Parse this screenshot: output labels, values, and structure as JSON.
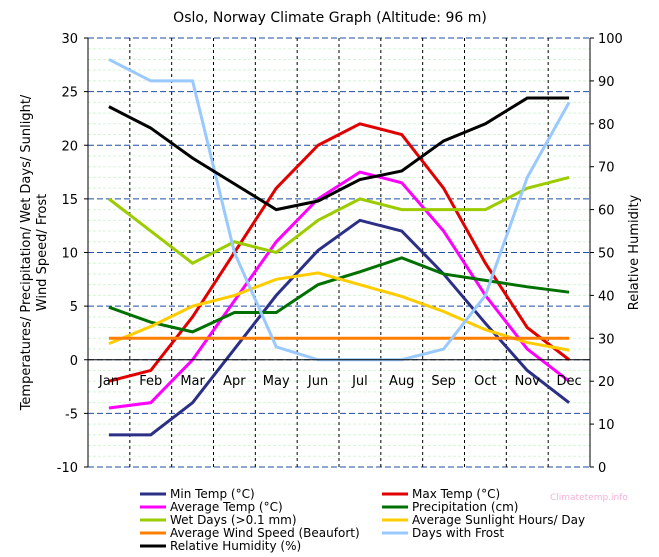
{
  "chart_data": {
    "type": "line",
    "title": "Oslo, Norway Climate Graph (Altitude: 96 m)",
    "categories": [
      "Jan",
      "Feb",
      "Mar",
      "Apr",
      "May",
      "Jun",
      "Jul",
      "Aug",
      "Sep",
      "Oct",
      "Nov",
      "Dec"
    ],
    "ylabel_left": [
      "Temperatures/ Precipitation/ Wet Days/ Sunlight/",
      "Wind Speed/ Frost"
    ],
    "ylabel_right": "Relative Humidity",
    "ylim_left": [
      -10,
      30
    ],
    "ylim_right": [
      0,
      100
    ],
    "yticks_left": [
      "-10",
      "-5",
      "0",
      "5",
      "10",
      "15",
      "20",
      "25",
      "30"
    ],
    "yticks_right": [
      "0",
      "10",
      "20",
      "30",
      "40",
      "50",
      "60",
      "70",
      "80",
      "90",
      "100"
    ],
    "grid": true,
    "legend_position": "bottom",
    "watermark": "Climatetemp.info",
    "series": [
      {
        "name": "Min Temp (°C)",
        "color": "#2b2f86",
        "axis": "left",
        "values": [
          -7,
          -7,
          -4,
          1,
          6,
          10.2,
          13,
          12,
          8,
          3.4,
          -1,
          -4
        ]
      },
      {
        "name": "Max Temp (°C)",
        "color": "#e00000",
        "axis": "left",
        "values": [
          -2,
          -1,
          4,
          10,
          16,
          20,
          22,
          21,
          16,
          9,
          3,
          0
        ]
      },
      {
        "name": "Average Temp (°C)",
        "color": "#ff00ff",
        "axis": "left",
        "values": [
          -4.5,
          -4,
          0,
          5.5,
          11,
          15,
          17.5,
          16.5,
          12,
          6,
          1,
          -2
        ]
      },
      {
        "name": "Precipitation (cm)",
        "color": "#007000",
        "axis": "left",
        "values": [
          4.9,
          3.5,
          2.6,
          4.4,
          4.4,
          7,
          8.2,
          9.5,
          8,
          7.4,
          6.8,
          6.3
        ]
      },
      {
        "name": "Wet Days (>0.1 mm)",
        "color": "#9ccc00",
        "axis": "left",
        "values": [
          15,
          12,
          9,
          11,
          10,
          13,
          15,
          14,
          14,
          14,
          16,
          17
        ]
      },
      {
        "name": "Average Sunlight Hours/ Day",
        "color": "#ffcc00",
        "axis": "left",
        "values": [
          1.5,
          3.1,
          5,
          6,
          7.5,
          8.1,
          7,
          5.9,
          4.5,
          2.8,
          1.6,
          0.9
        ]
      },
      {
        "name": "Average Wind Speed (Beaufort)",
        "color": "#ff8000",
        "axis": "left",
        "values": [
          2,
          2,
          2,
          2,
          2,
          2,
          2,
          2,
          2,
          2,
          2,
          2
        ]
      },
      {
        "name": "Days with Frost",
        "color": "#99c9ff",
        "axis": "left",
        "values": [
          28,
          26,
          26,
          10,
          1.2,
          0,
          0,
          0,
          1,
          6,
          17,
          24
        ]
      },
      {
        "name": "Relative Humidity (%)",
        "color": "#000000",
        "axis": "right",
        "values": [
          84,
          79,
          72,
          66,
          60,
          62,
          67,
          69,
          76,
          80,
          86,
          86
        ]
      }
    ]
  }
}
